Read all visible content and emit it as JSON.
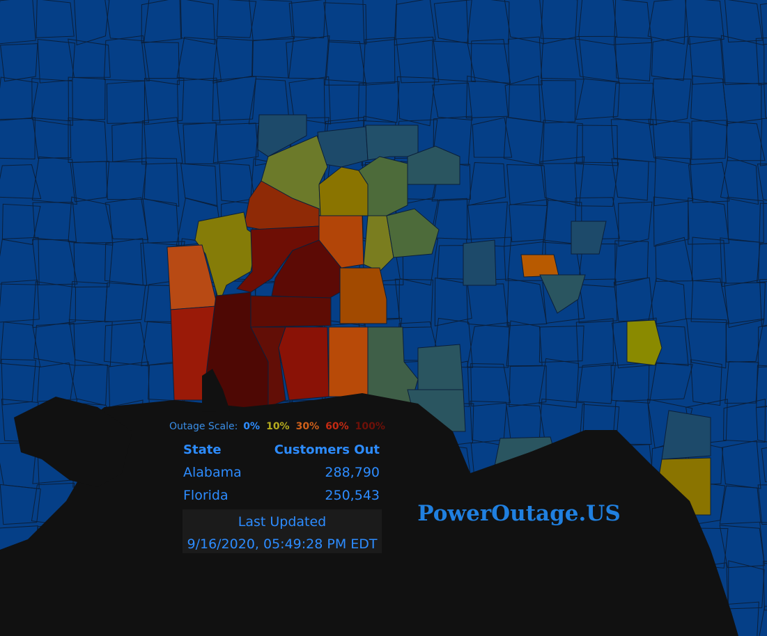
{
  "legend": {
    "label": "Outage Scale:",
    "levels": [
      {
        "text": "0%",
        "color": "#2d8cff"
      },
      {
        "text": "10%",
        "color": "#b5ab1e"
      },
      {
        "text": "30%",
        "color": "#d0601a"
      },
      {
        "text": "60%",
        "color": "#c42a12"
      },
      {
        "text": "100%",
        "color": "#6e1008"
      }
    ]
  },
  "table": {
    "headers": [
      "State",
      "Customers Out"
    ],
    "rows": [
      [
        "Alabama",
        "288,790"
      ],
      [
        "Florida",
        "250,543"
      ]
    ]
  },
  "updated": {
    "label": "Last Updated",
    "time": "9/16/2020, 05:49:28 PM EDT"
  },
  "brand": "PowerOutage.US"
}
